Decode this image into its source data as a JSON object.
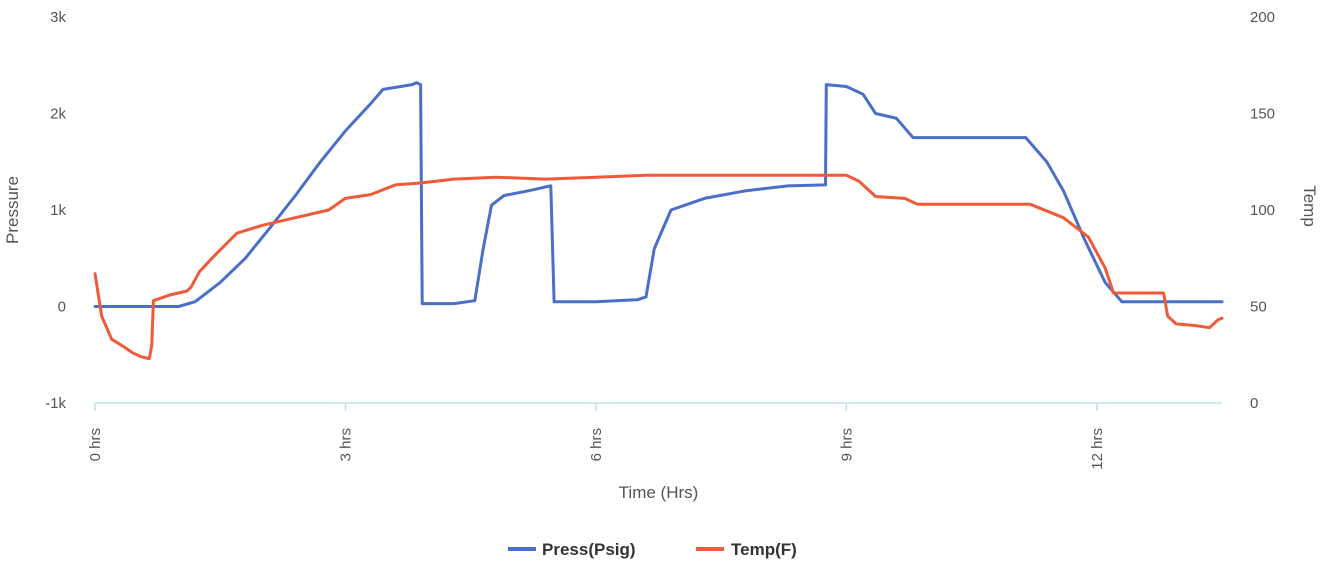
{
  "chart_data": {
    "type": "line",
    "xlabel": "Time (Hrs)",
    "ylabel_left": "Pressure",
    "ylabel_right": "Temp",
    "xlim": [
      0,
      13.5
    ],
    "ylim_left": [
      -1000,
      3000
    ],
    "ylim_right": [
      0,
      200
    ],
    "xticks": [
      {
        "value": 0,
        "label": "0 hrs"
      },
      {
        "value": 3,
        "label": "3 hrs"
      },
      {
        "value": 6,
        "label": "6 hrs"
      },
      {
        "value": 9,
        "label": "9 hrs"
      },
      {
        "value": 12,
        "label": "12 hrs"
      }
    ],
    "yticks_left": [
      {
        "value": -1000,
        "label": "-1k"
      },
      {
        "value": 0,
        "label": "0"
      },
      {
        "value": 1000,
        "label": "1k"
      },
      {
        "value": 2000,
        "label": "2k"
      },
      {
        "value": 3000,
        "label": "3k"
      }
    ],
    "yticks_right": [
      {
        "value": 0,
        "label": "0"
      },
      {
        "value": 50,
        "label": "50"
      },
      {
        "value": 100,
        "label": "100"
      },
      {
        "value": 150,
        "label": "150"
      },
      {
        "value": 200,
        "label": "200"
      }
    ],
    "legend_position": "bottom",
    "grid": false,
    "series": [
      {
        "name": "Press(Psig)",
        "axis": "left",
        "color": "#4a6fc8",
        "x": [
          0,
          0.5,
          1.0,
          1.2,
          1.5,
          1.8,
          2.1,
          2.4,
          2.7,
          3.0,
          3.3,
          3.45,
          3.8,
          3.85,
          3.9,
          3.92,
          4.3,
          4.55,
          4.65,
          4.75,
          4.9,
          5.2,
          5.45,
          5.46,
          5.5,
          6.0,
          6.5,
          6.6,
          6.7,
          6.9,
          7.3,
          7.8,
          8.3,
          8.75,
          8.76,
          9.0,
          9.2,
          9.35,
          9.6,
          9.75,
          9.8,
          10.3,
          10.8,
          11.15,
          11.4,
          11.6,
          11.85,
          12.1,
          12.3,
          13.0,
          13.5
        ],
        "values": [
          0,
          0,
          0,
          50,
          250,
          500,
          820,
          1150,
          1500,
          1820,
          2100,
          2250,
          2300,
          2320,
          2300,
          30,
          30,
          60,
          600,
          1050,
          1150,
          1200,
          1250,
          1250,
          50,
          50,
          70,
          100,
          600,
          1000,
          1120,
          1200,
          1250,
          1260,
          2300,
          2280,
          2200,
          2000,
          1950,
          1800,
          1750,
          1750,
          1750,
          1750,
          1500,
          1200,
          700,
          250,
          50,
          50,
          50
        ]
      },
      {
        "name": "Temp(F)",
        "axis": "right",
        "color": "#ef5a38",
        "x": [
          0,
          0.08,
          0.2,
          0.35,
          0.45,
          0.55,
          0.65,
          0.68,
          0.7,
          0.9,
          1.1,
          1.15,
          1.25,
          1.4,
          1.7,
          2.0,
          2.4,
          2.8,
          3.0,
          3.3,
          3.6,
          3.9,
          4.3,
          4.8,
          5.4,
          6.0,
          6.6,
          7.2,
          7.8,
          8.4,
          9.0,
          9.15,
          9.35,
          9.7,
          9.85,
          10.5,
          11.2,
          11.6,
          11.9,
          12.1,
          12.2,
          12.8,
          12.85,
          12.95,
          13.2,
          13.35,
          13.45,
          13.5
        ],
        "values": [
          67,
          45,
          33,
          29,
          26,
          24,
          23,
          30,
          53,
          56,
          58,
          60,
          68,
          75,
          88,
          92,
          96,
          100,
          106,
          108,
          113,
          114,
          116,
          117,
          116,
          117,
          118,
          118,
          118,
          118,
          118,
          115,
          107,
          106,
          103,
          103,
          103,
          96,
          86,
          70,
          57,
          57,
          45,
          41,
          40,
          39,
          43,
          44
        ]
      }
    ]
  }
}
